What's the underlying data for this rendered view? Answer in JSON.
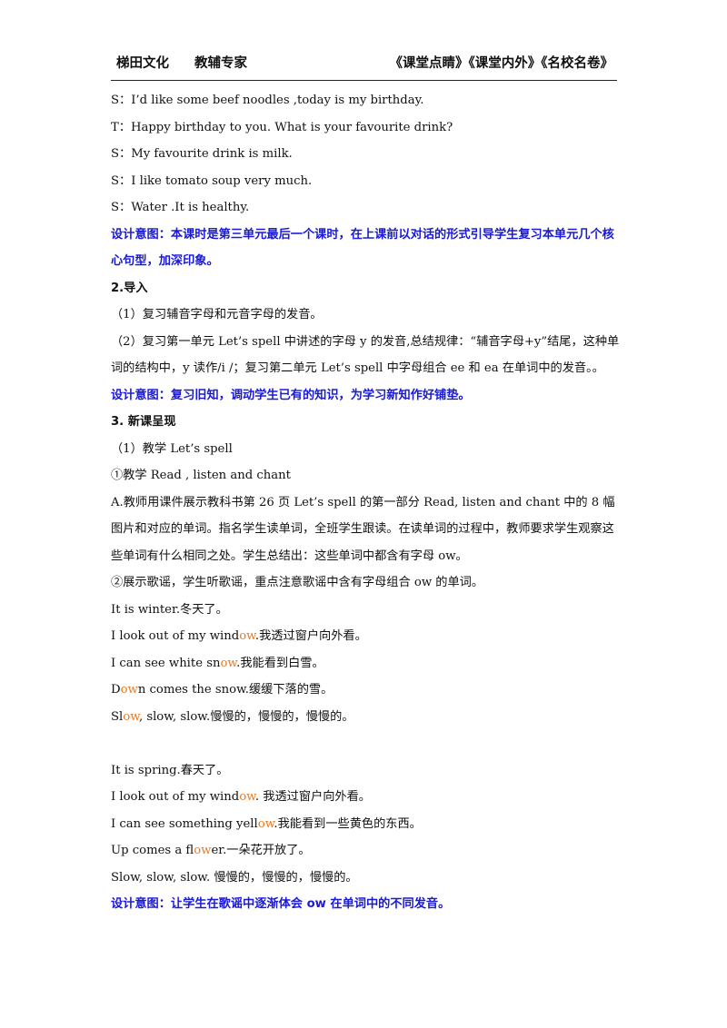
{
  "header": {
    "left1": "梯田文化",
    "left2": "教辅专家",
    "right": "《课堂点睛》《课堂内外》《名校名卷》"
  },
  "dialogue": [
    "S：I’d like some beef noodles ,today is my birthday.",
    "T：Happy birthday to you. What is your favourite drink?",
    "S：My favourite drink is milk.",
    "S：I like tomato soup very much.",
    "S：Water .It is healthy."
  ],
  "intent1": "设计意图：本课时是第三单元最后一个课时，在上课前以对话的形式引导学生复习本单元几个核心句型，加深印象。",
  "sec2_title": "2.导入",
  "sec2_item1": "（1）复习辅音字母和元音字母的发音。",
  "sec2_item2": "（2）复习第一单元 Let’s spell 中讲述的字母 y 的发音,总结规律：“辅音字母+y”结尾，这种单词的结构中，y 读作/i /；复习第二单元 Let’s spell 中字母组合 ee 和 ea 在单词中的发音。。",
  "intent2": "设计意图：复习旧知，调动学生已有的知识，为学习新知作好铺垫。",
  "sec3_title": "3. 新课呈现",
  "sec3_item1": "（1）教学 Let’s spell",
  "sec3_sub1": "①教学 Read , listen and chant",
  "sec3_para": "A.教师用课件展示教科书第 26 页 Let’s spell 的第一部分 Read, listen and chant 中的 8 幅图片和对应的单词。指名学生读单词，全班学生跟读。在读单词的过程中，教师要求学生观察这些单词有什么相同之处。学生总结出：这些单词中都含有字母 ow。",
  "sec3_sub2": "②展示歌谣，学生听歌谣，重点注意歌谣中含有字母组合 ow 的单词。",
  "chant1": {
    "l1": "It is winter.冬天了。",
    "l2a": "I look out of my wind",
    "l2b": "ow",
    "l2c": ".我透过窗户向外看。",
    "l3a": "I can see white sn",
    "l3b": "ow",
    "l3c": ".我能看到白雪。",
    "l4a": "D",
    "l4b": "ow",
    "l4c": "n comes the snow.缓缓下落的雪。",
    "l5a": "Sl",
    "l5b": "ow",
    "l5c": ", slow, slow.慢慢的，慢慢的，慢慢的。"
  },
  "chant2": {
    "l1": "It is spring.春天了。",
    "l2a": "I look out of my wind",
    "l2b": "ow",
    "l2c": ". 我透过窗户向外看。",
    "l3a": "I can see something yell",
    "l3b": "ow",
    "l3c": ".我能看到一些黄色的东西。",
    "l4a": "Up comes a fl",
    "l4b": "ow",
    "l4c": "er.一朵花开放了。",
    "l5": "Slow, slow, slow. 慢慢的，慢慢的，慢慢的。"
  },
  "intent3": "设计意图：让学生在歌谣中逐渐体会 ow 在单词中的不同发音。"
}
